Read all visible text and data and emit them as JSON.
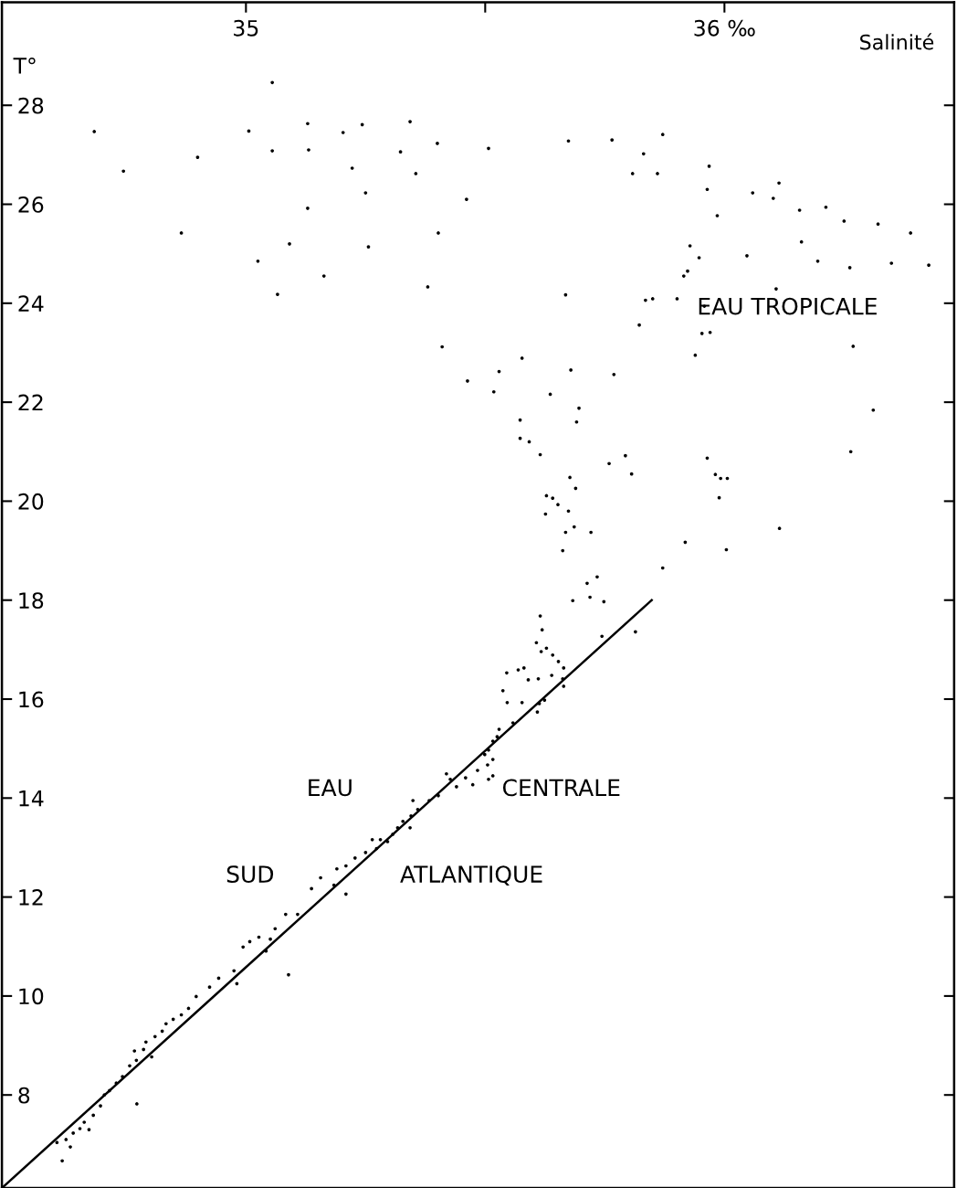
{
  "chart_data": {
    "type": "scatter",
    "xlabel": "Salinité",
    "ylabel": "T°",
    "xlim": [
      34.49,
      36.48
    ],
    "ylim": [
      6.12,
      30.08
    ],
    "xticks": [
      35,
      {
        "value": 35.5,
        "label": null
      },
      {
        "value": 36,
        "label": "36 ‰"
      }
    ],
    "yticks": [
      8,
      10,
      12,
      14,
      16,
      18,
      20,
      22,
      24,
      26,
      28
    ],
    "grid": false,
    "annotations": [
      "EAU TROPICALE",
      "EAU",
      "CENTRALE",
      "SUD",
      "ATLANTIQUE"
    ],
    "series": [
      {
        "marker": "circle",
        "color": "#000000",
        "x": [
          34.683,
          34.744,
          34.865,
          34.899,
          35.006,
          35.055,
          35.055,
          35.025,
          35.066,
          35.091,
          35.129,
          35.131,
          35.129,
          35.163,
          35.203,
          35.222,
          35.243,
          35.25,
          35.256,
          35.323,
          35.343,
          35.355,
          35.38,
          35.4,
          35.402,
          35.41,
          35.461,
          35.463,
          35.507,
          35.518,
          35.529,
          35.577,
          35.573,
          35.573,
          35.592,
          35.615,
          35.636,
          35.668,
          35.674,
          35.679,
          35.696,
          35.691,
          35.628,
          35.641,
          35.652,
          35.677,
          35.689,
          35.626,
          35.674,
          35.686,
          35.668,
          35.721,
          35.662,
          35.713,
          35.734,
          35.683,
          35.719,
          35.748,
          35.765,
          35.769,
          35.759,
          35.793,
          35.808,
          35.806,
          35.831,
          35.822,
          35.835,
          35.85,
          35.86,
          35.871,
          35.901,
          35.871,
          35.915,
          35.923,
          35.928,
          35.947,
          35.918,
          35.939,
          35.953,
          35.97,
          35.958,
          35.964,
          35.968,
          35.985,
          35.964,
          35.981,
          35.992,
          36.006,
          35.989,
          36.004,
          36.047,
          36.059,
          36.102,
          36.114,
          36.108,
          36.115,
          36.157,
          36.161,
          36.195,
          36.212,
          36.25,
          36.262,
          36.269,
          36.264,
          36.311,
          36.321,
          36.349,
          36.389,
          36.427,
          35.615,
          35.619,
          35.607,
          35.617,
          35.628,
          35.641,
          35.653,
          35.664,
          35.662,
          35.639,
          35.611,
          35.59,
          35.581,
          35.569,
          35.545,
          35.537,
          35.546,
          35.577,
          35.609,
          35.613,
          35.624,
          35.664,
          35.744,
          35.814,
          35.558,
          35.529,
          35.525,
          35.516,
          35.507,
          35.499,
          35.516,
          35.505,
          35.484,
          35.459,
          35.427,
          35.419,
          35.516,
          35.44,
          35.474,
          35.507,
          35.402,
          35.383,
          35.349,
          35.359,
          35.345,
          35.328,
          35.317,
          35.343,
          35.307,
          35.296,
          35.281,
          35.264,
          35.273,
          35.25,
          35.228,
          35.209,
          35.19,
          35.209,
          35.184,
          35.156,
          35.137,
          35.108,
          35.083,
          35.061,
          35.051,
          35.027,
          35.008,
          34.994,
          35.042,
          35.089,
          34.975,
          34.981,
          34.943,
          34.924,
          34.896,
          34.88,
          34.865,
          34.848,
          34.833,
          34.825,
          34.81,
          34.791,
          34.803,
          34.786,
          34.767,
          34.757,
          34.771,
          34.742,
          34.729,
          34.715,
          34.704,
          34.696,
          34.772,
          34.681,
          34.662,
          34.672,
          34.653,
          34.639,
          34.624,
          34.605,
          34.633,
          34.616
        ],
        "values": [
          27.47,
          26.67,
          25.42,
          26.95,
          27.48,
          28.46,
          27.08,
          24.85,
          24.18,
          25.2,
          27.63,
          27.1,
          25.92,
          24.55,
          27.45,
          26.73,
          27.61,
          26.23,
          25.14,
          27.06,
          27.67,
          26.62,
          24.33,
          27.23,
          25.42,
          23.12,
          26.1,
          22.43,
          27.13,
          22.21,
          22.62,
          22.89,
          21.64,
          21.27,
          21.2,
          20.94,
          22.16,
          24.17,
          27.28,
          22.65,
          21.88,
          21.6,
          20.11,
          20.06,
          19.93,
          20.48,
          20.26,
          19.74,
          19.8,
          19.48,
          19.37,
          19.37,
          19.0,
          18.34,
          18.47,
          17.99,
          18.06,
          17.97,
          27.3,
          22.56,
          20.76,
          20.92,
          26.62,
          20.55,
          27.02,
          23.56,
          24.06,
          24.09,
          26.62,
          27.41,
          24.09,
          18.65,
          24.55,
          24.65,
          25.16,
          24.92,
          19.17,
          22.95,
          23.39,
          23.41,
          23.94,
          26.3,
          26.77,
          25.77,
          20.87,
          20.54,
          20.46,
          20.46,
          20.07,
          19.02,
          24.96,
          26.23,
          26.12,
          26.43,
          24.29,
          19.45,
          25.88,
          25.24,
          24.85,
          25.94,
          25.66,
          24.72,
          23.13,
          21.0,
          21.84,
          25.6,
          24.81,
          25.42,
          24.77,
          17.68,
          17.4,
          17.14,
          16.96,
          17.03,
          16.89,
          16.76,
          16.63,
          16.41,
          16.48,
          16.41,
          16.39,
          16.63,
          16.59,
          16.53,
          16.17,
          15.93,
          15.93,
          15.74,
          15.91,
          15.98,
          16.26,
          17.27,
          17.36,
          15.52,
          15.39,
          15.24,
          15.15,
          14.97,
          14.88,
          14.78,
          14.67,
          14.56,
          14.41,
          14.38,
          14.49,
          14.45,
          14.23,
          14.27,
          14.38,
          14.05,
          13.95,
          13.95,
          13.77,
          13.64,
          13.53,
          13.4,
          13.4,
          13.27,
          13.12,
          13.16,
          13.16,
          12.98,
          12.9,
          12.79,
          12.63,
          12.57,
          12.06,
          12.24,
          12.39,
          12.17,
          11.65,
          11.65,
          11.36,
          11.15,
          11.19,
          11.1,
          10.99,
          10.91,
          10.43,
          10.51,
          10.25,
          10.36,
          10.18,
          9.99,
          9.75,
          9.62,
          9.53,
          9.44,
          9.29,
          9.18,
          9.07,
          8.77,
          8.92,
          8.89,
          8.59,
          8.7,
          8.37,
          8.24,
          8.09,
          8.0,
          7.78,
          7.82,
          7.59,
          7.45,
          7.3,
          7.32,
          7.23,
          7.1,
          7.04,
          6.95,
          6.67
        ]
      },
      {
        "type": "line",
        "color": "#000000",
        "x": [
          34.49,
          35.848
        ],
        "values": [
          6.12,
          18.0
        ]
      }
    ]
  }
}
